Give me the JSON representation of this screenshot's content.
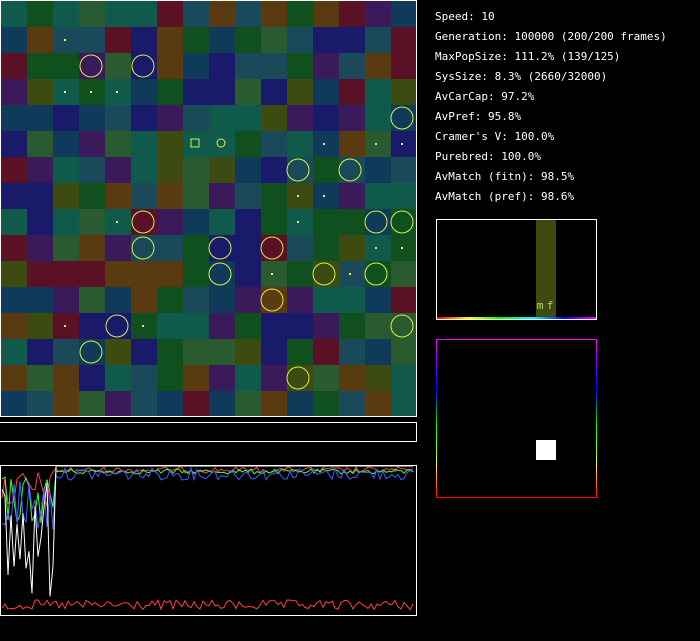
{
  "stats": [
    "Speed: 10",
    "Generation: 100000 (200/200 frames)",
    "MaxPopSize: 111.2% (139/125)",
    "SysSize: 8.3% (2660/32000)",
    "AvCarCap: 97.2%",
    "AvPref: 95.8%",
    "Cramer's V: 100.0%",
    "Purebred: 100.0%",
    "AvMatch (fitn): 98.5%",
    "AvMatch (pref): 98.6%"
  ],
  "histogram": {
    "labels": [
      "m",
      "f"
    ]
  }
}
